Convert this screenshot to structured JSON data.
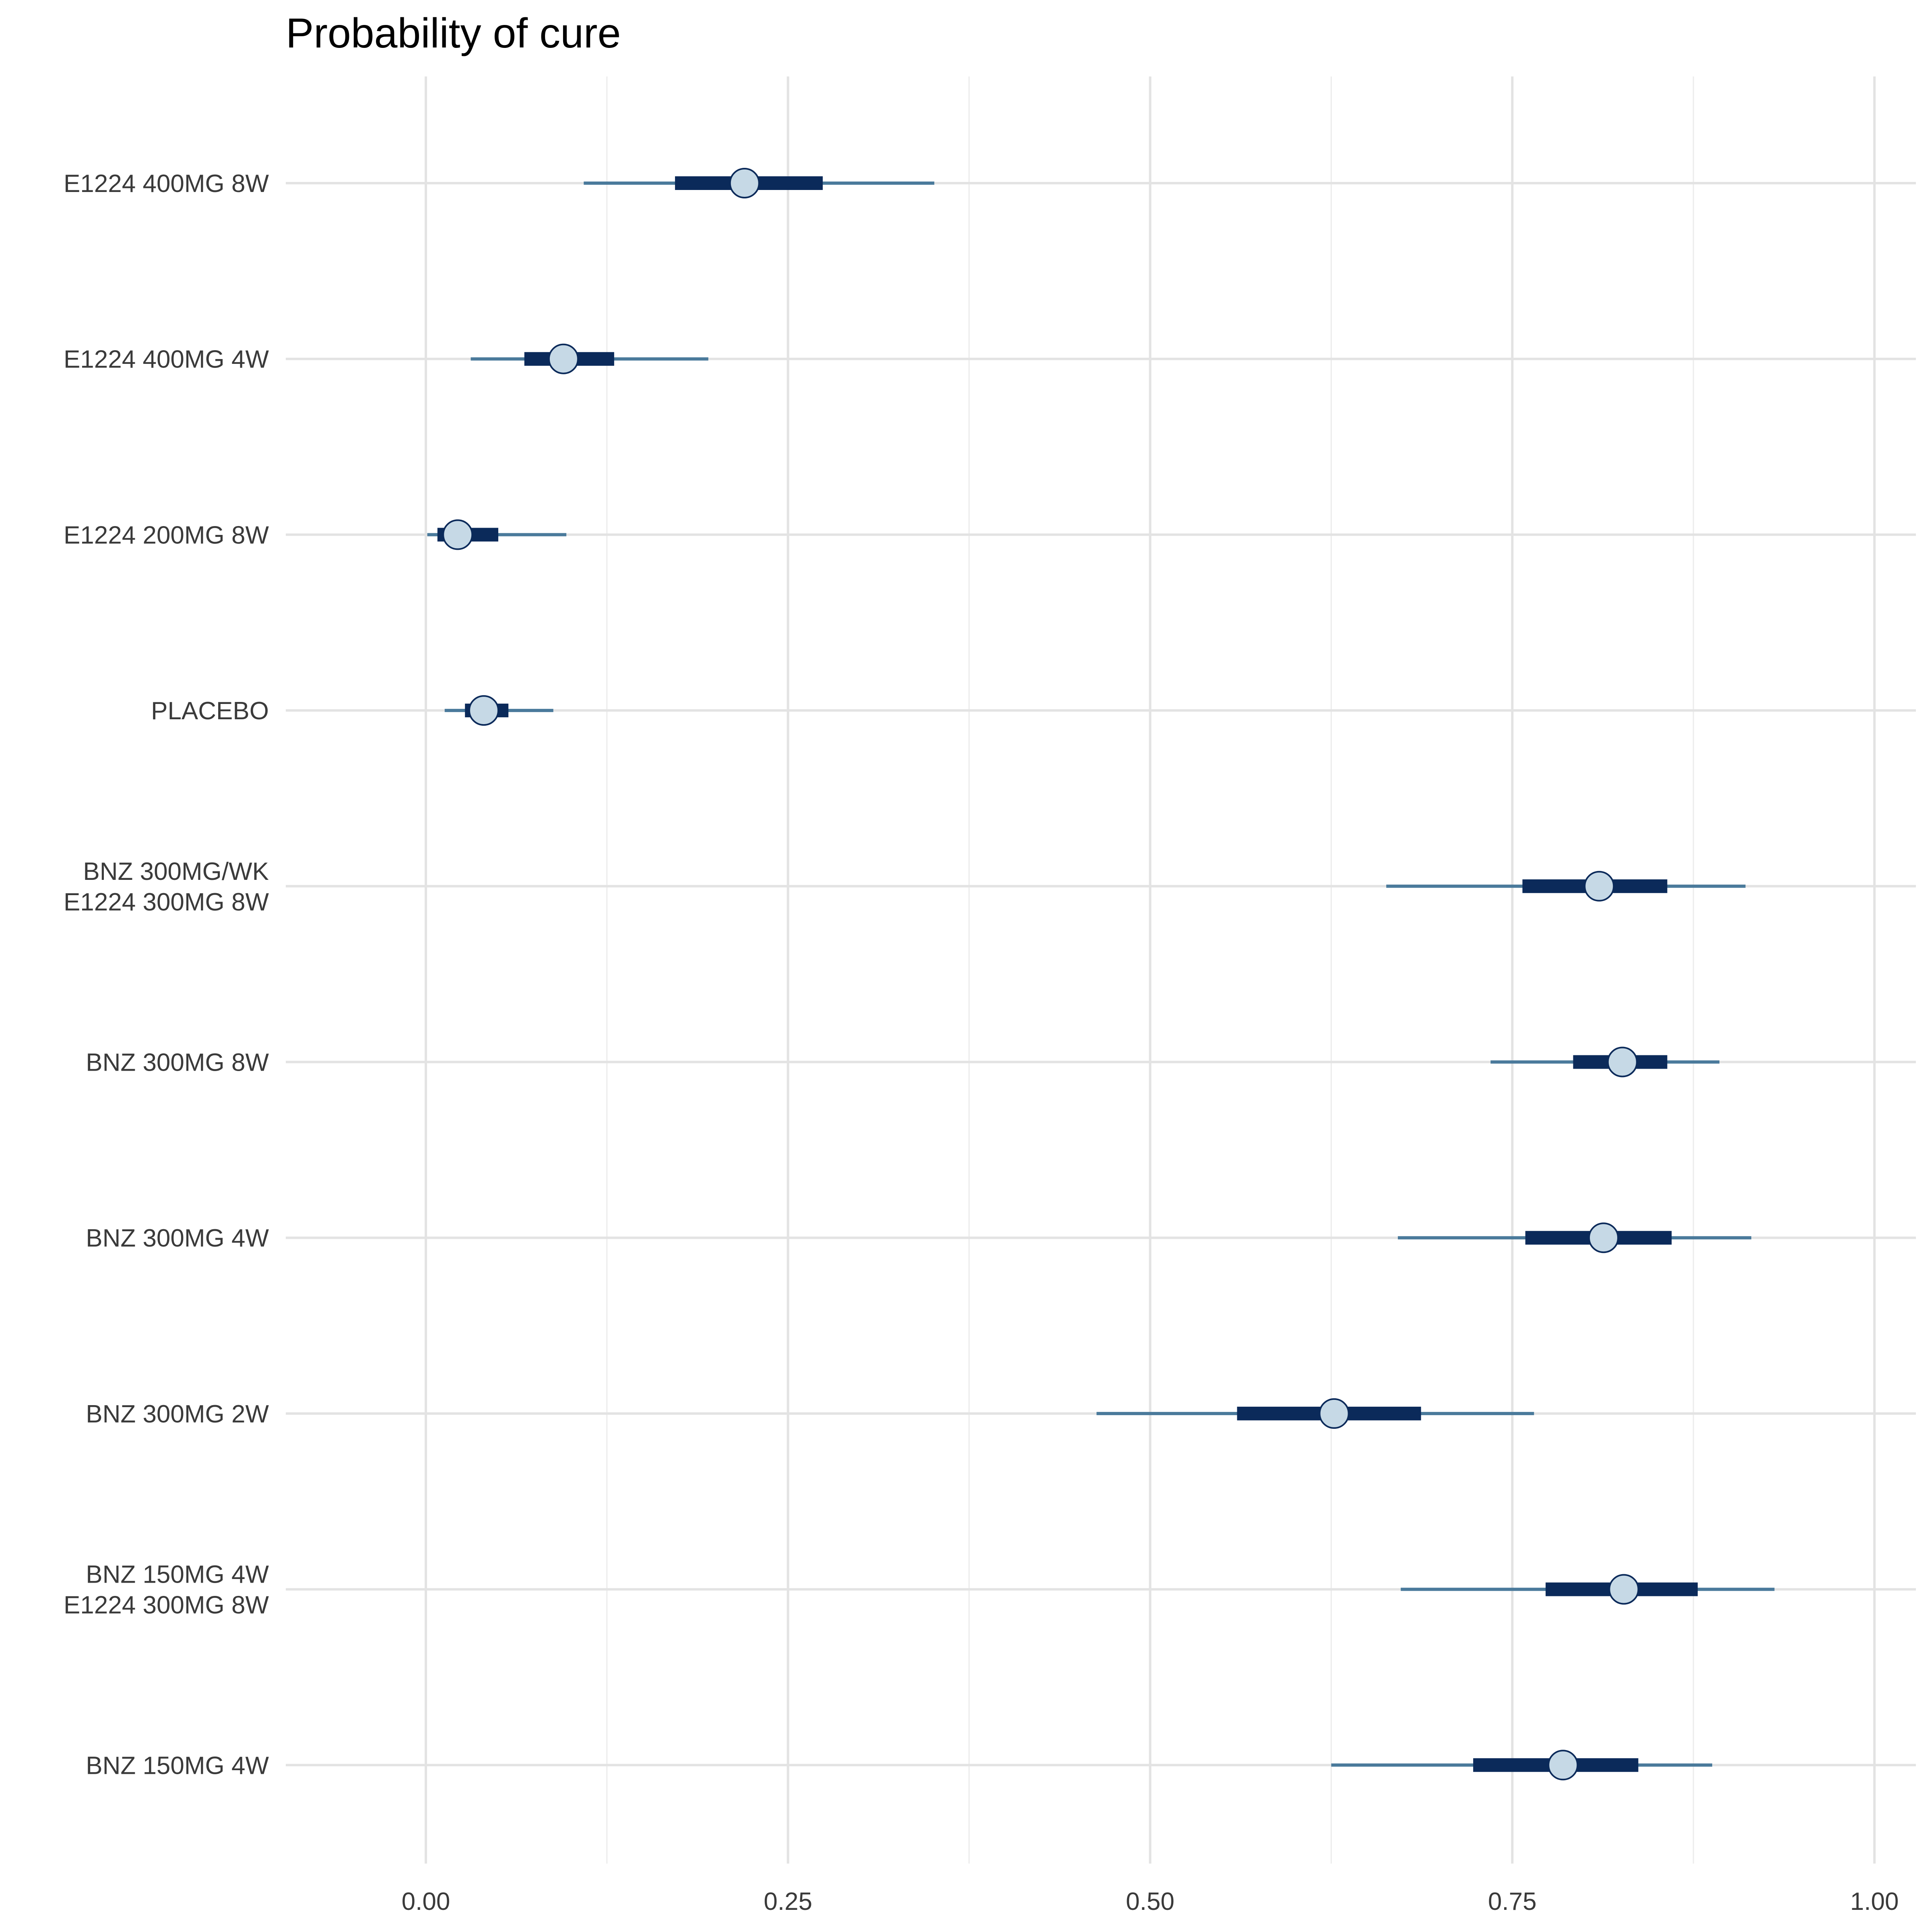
{
  "chart_data": {
    "type": "pointinterval",
    "title": "Probability of cure",
    "xlabel": "",
    "ylabel": "",
    "xlim": [
      -0.095,
      1.025
    ],
    "xticks": [
      0.0,
      0.25,
      0.5,
      0.75,
      1.0
    ],
    "xtick_labels": [
      "0.00",
      "0.25",
      "0.50",
      "0.75",
      "1.00"
    ],
    "grid": true,
    "legend": "none",
    "colors": {
      "outer_interval": "#4a7a9b",
      "inner_interval": "#0b2a5a",
      "point_fill": "#c6d9e6",
      "point_stroke": "#0b2a5a",
      "major_grid": "#e3e3e3",
      "minor_grid": "#ececec"
    },
    "categories": [
      {
        "label": [
          "E1224 400MG 8W"
        ],
        "median": 0.22,
        "inner": [
          0.172,
          0.274
        ],
        "outer": [
          0.109,
          0.351
        ]
      },
      {
        "label": [
          "E1224 400MG 4W"
        ],
        "median": 0.095,
        "inner": [
          0.068,
          0.13
        ],
        "outer": [
          0.031,
          0.195
        ]
      },
      {
        "label": [
          "E1224 200MG 8W"
        ],
        "median": 0.022,
        "inner": [
          0.008,
          0.05
        ],
        "outer": [
          0.001,
          0.097
        ]
      },
      {
        "label": [
          "PLACEBO"
        ],
        "median": 0.04,
        "inner": [
          0.027,
          0.057
        ],
        "outer": [
          0.013,
          0.088
        ]
      },
      {
        "label": [
          "BNZ 300MG/WK",
          "E1224 300MG 8W"
        ],
        "median": 0.81,
        "inner": [
          0.757,
          0.857
        ],
        "outer": [
          0.663,
          0.911
        ]
      },
      {
        "label": [
          "BNZ 300MG 8W"
        ],
        "median": 0.826,
        "inner": [
          0.792,
          0.857
        ],
        "outer": [
          0.735,
          0.893
        ]
      },
      {
        "label": [
          "BNZ 300MG 4W"
        ],
        "median": 0.813,
        "inner": [
          0.759,
          0.86
        ],
        "outer": [
          0.671,
          0.915
        ]
      },
      {
        "label": [
          "BNZ 300MG 2W"
        ],
        "median": 0.627,
        "inner": [
          0.56,
          0.687
        ],
        "outer": [
          0.463,
          0.765
        ]
      },
      {
        "label": [
          "BNZ 150MG 4W",
          "E1224 300MG 8W"
        ],
        "median": 0.827,
        "inner": [
          0.773,
          0.878
        ],
        "outer": [
          0.673,
          0.931
        ]
      },
      {
        "label": [
          "BNZ 150MG 4W"
        ],
        "median": 0.785,
        "inner": [
          0.723,
          0.837
        ],
        "outer": [
          0.625,
          0.888
        ]
      }
    ]
  }
}
